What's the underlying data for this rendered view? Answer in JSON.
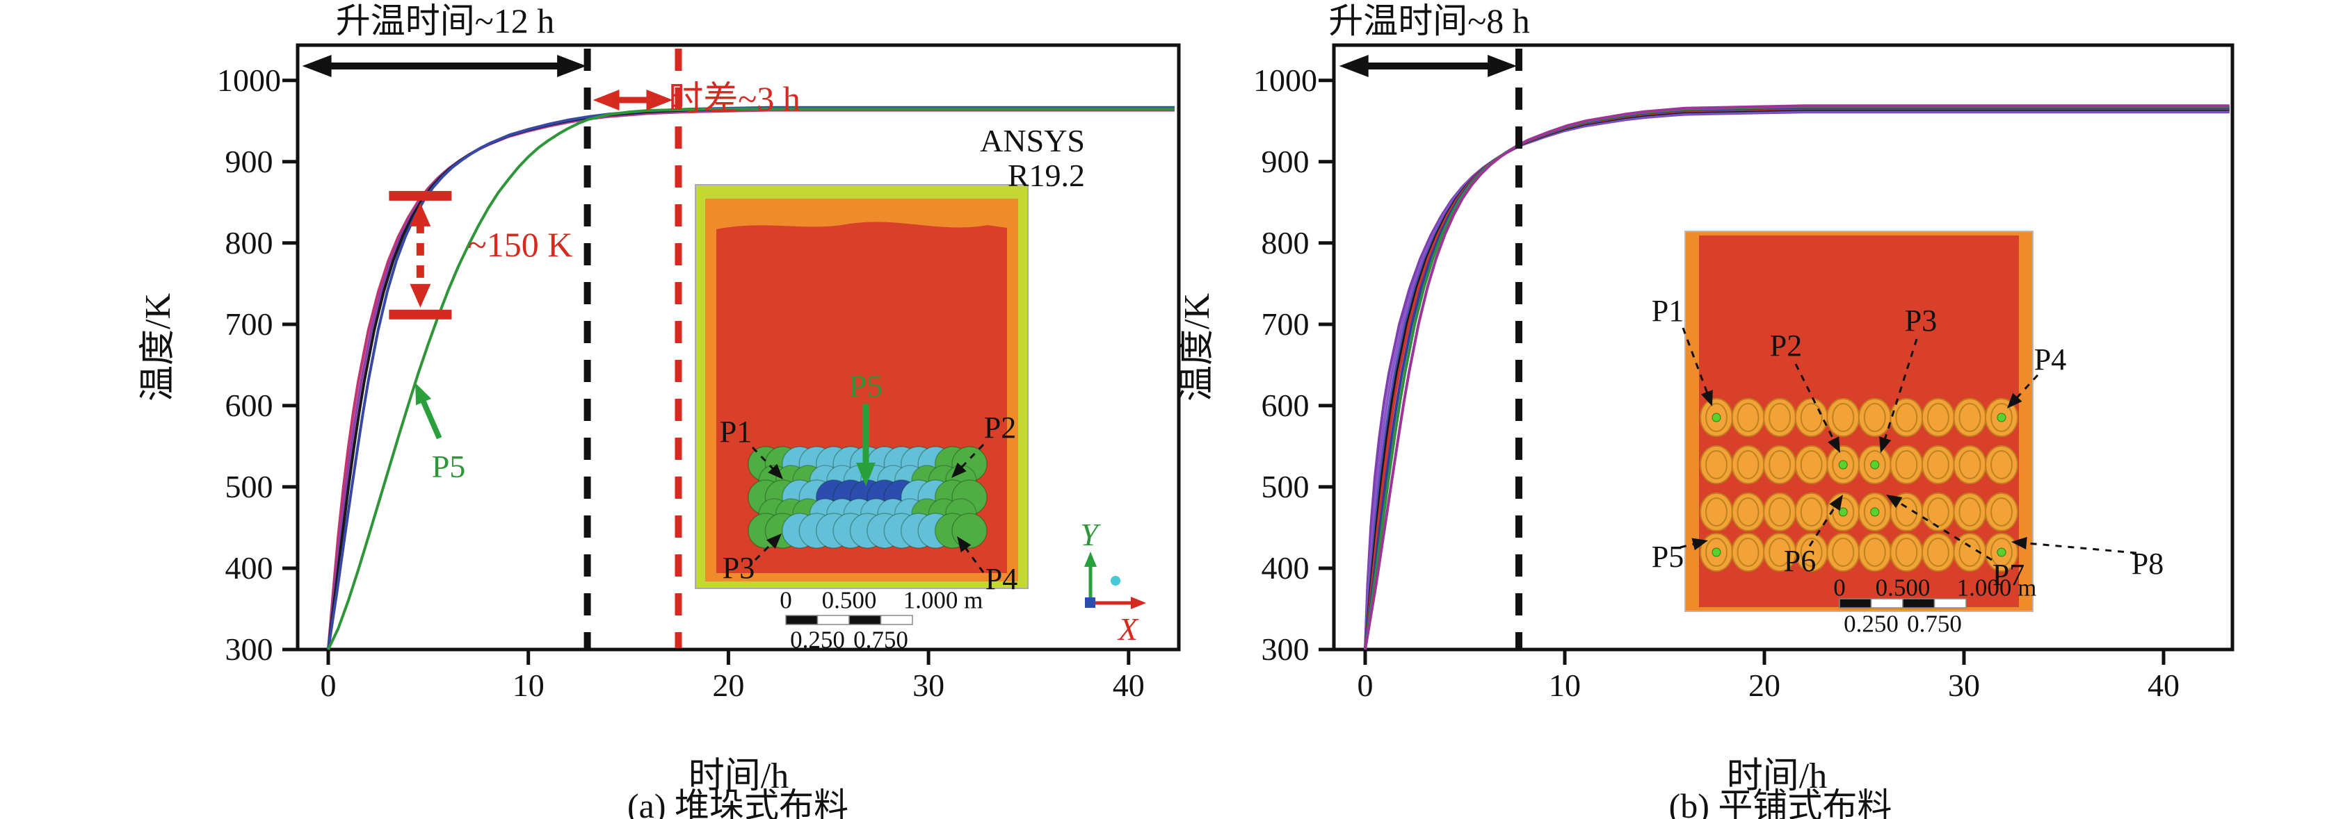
{
  "figure": {
    "caption_a": "(a) 堆垛式布料",
    "caption_b": "(b) 平铺式布料"
  },
  "panel_a": {
    "heatup_label": "升温时间~12 h",
    "timediff_label": "时差~3 h",
    "delta_label": "~150 K",
    "software": [
      "ANSYS",
      "R19.2"
    ],
    "curve_label": "P5",
    "xlabel": "时间/h",
    "ylabel": "温度/K",
    "x_ticks": [
      0,
      10,
      20,
      30,
      40
    ],
    "y_ticks": [
      300,
      400,
      500,
      600,
      700,
      800,
      900,
      1000
    ],
    "inset": {
      "point_labels": [
        "P1",
        "P2",
        "P3",
        "P4"
      ],
      "center_label": "P5",
      "scale_top": [
        "0",
        "0.500",
        "1.000 m"
      ],
      "scale_bottom": [
        "0.250",
        "0.750"
      ],
      "axis_x": "X",
      "axis_y": "Y"
    }
  },
  "panel_b": {
    "heatup_label": "升温时间~8 h",
    "xlabel": "时间/h",
    "ylabel": "温度/K",
    "x_ticks": [
      0,
      10,
      20,
      30,
      40
    ],
    "y_ticks": [
      300,
      400,
      500,
      600,
      700,
      800,
      900,
      1000
    ],
    "inset": {
      "point_labels": [
        "P1",
        "P2",
        "P3",
        "P4",
        "P5",
        "P6",
        "P7",
        "P8"
      ],
      "scale_top": [
        "0",
        "0.500",
        "1.000 m"
      ],
      "scale_bottom": [
        "0.250",
        "0.750"
      ]
    }
  },
  "chart_data": [
    {
      "type": "line",
      "title": "(a) 堆垛式布料",
      "xlabel": "时间/h",
      "ylabel": "温度/K",
      "xlim": [
        -1.5,
        42.5
      ],
      "ylim": [
        300,
        1043
      ],
      "plateau_K": 965,
      "start_K": 300,
      "base_points": [
        [
          0,
          300
        ],
        [
          0.25,
          372
        ],
        [
          0.5,
          440
        ],
        [
          0.75,
          498
        ],
        [
          1,
          548
        ],
        [
          1.25,
          592
        ],
        [
          1.5,
          630
        ],
        [
          2,
          692
        ],
        [
          2.5,
          740
        ],
        [
          3,
          778
        ],
        [
          3.5,
          808
        ],
        [
          4,
          832
        ],
        [
          4.5,
          852
        ],
        [
          5,
          868
        ],
        [
          5.5,
          881
        ],
        [
          6,
          892
        ],
        [
          6.5,
          901
        ],
        [
          7,
          909
        ],
        [
          7.5,
          916
        ],
        [
          8,
          922
        ],
        [
          9,
          932
        ],
        [
          10,
          939
        ],
        [
          11,
          945
        ],
        [
          12,
          950
        ],
        [
          13,
          954
        ],
        [
          14,
          957
        ],
        [
          15,
          959
        ],
        [
          16,
          961
        ],
        [
          18,
          963
        ],
        [
          20,
          964
        ],
        [
          22,
          965
        ],
        [
          25,
          965
        ],
        [
          28,
          965
        ],
        [
          30,
          965
        ],
        [
          32,
          965
        ],
        [
          35,
          965
        ],
        [
          38,
          965
        ],
        [
          40,
          965
        ],
        [
          42.3,
          965
        ]
      ],
      "series": [
        {
          "name": "P1",
          "color": "#c2346e",
          "dt": 0
        },
        {
          "name": "P2",
          "color": "#8a41b0",
          "dt": 0.15
        },
        {
          "name": "P3",
          "color": "#181818",
          "dt": 0.3
        },
        {
          "name": "P4",
          "color": "#3748a6",
          "dt": 0.5
        }
      ],
      "slow_series": {
        "name": "P5",
        "color": "#2e9639",
        "points": [
          [
            0,
            300
          ],
          [
            0.5,
            326
          ],
          [
            1,
            360
          ],
          [
            1.5,
            398
          ],
          [
            2,
            438
          ],
          [
            2.5,
            479
          ],
          [
            3,
            520
          ],
          [
            3.5,
            561
          ],
          [
            4,
            601
          ],
          [
            4.5,
            640
          ],
          [
            5,
            676
          ],
          [
            5.5,
            710
          ],
          [
            6,
            742
          ],
          [
            6.5,
            771
          ],
          [
            7,
            797
          ],
          [
            7.5,
            821
          ],
          [
            8,
            843
          ],
          [
            8.5,
            862
          ],
          [
            9,
            878
          ],
          [
            9.5,
            893
          ],
          [
            10,
            906
          ],
          [
            10.5,
            917
          ],
          [
            11,
            926
          ],
          [
            11.5,
            934
          ],
          [
            12,
            941
          ],
          [
            12.5,
            947
          ],
          [
            13,
            952
          ],
          [
            14,
            958
          ],
          [
            15,
            961
          ],
          [
            16,
            963
          ],
          [
            18,
            964
          ],
          [
            20,
            965
          ],
          [
            25,
            965
          ],
          [
            30,
            965
          ],
          [
            35,
            965
          ],
          [
            40,
            965
          ],
          [
            42.3,
            965
          ]
        ]
      },
      "annotations": {
        "heatup_time_h": 12,
        "heatup_arrow_h": [
          -1.3,
          12.9
        ],
        "vline_black_h": 12.95,
        "vline_red_h": 17.5,
        "time_gap_h": 3,
        "temp_gap_K": 150,
        "delta_arrow": {
          "t_h": 4.6,
          "T_top_K": 858,
          "T_bottom_K": 712
        },
        "p5_pointer": {
          "tip": [
            4.35,
            628
          ],
          "tail": [
            5.55,
            560
          ]
        }
      }
    },
    {
      "type": "line",
      "title": "(b) 平铺式布料",
      "xlabel": "时间/h",
      "ylabel": "温度/K",
      "xlim": [
        -1.5,
        43.4
      ],
      "ylim": [
        300,
        1043
      ],
      "plateau_K": 965,
      "start_K": 300,
      "base_points": [
        [
          0,
          300
        ],
        [
          0.25,
          380
        ],
        [
          0.5,
          452
        ],
        [
          0.75,
          512
        ],
        [
          1,
          562
        ],
        [
          1.25,
          605
        ],
        [
          1.5,
          641
        ],
        [
          2,
          700
        ],
        [
          2.5,
          745
        ],
        [
          3,
          781
        ],
        [
          3.5,
          810
        ],
        [
          4,
          834
        ],
        [
          4.5,
          854
        ],
        [
          5,
          870
        ],
        [
          5.5,
          883
        ],
        [
          6,
          894
        ],
        [
          6.5,
          903
        ],
        [
          7,
          911
        ],
        [
          7.5,
          918
        ],
        [
          8,
          924
        ],
        [
          9,
          933
        ],
        [
          10,
          941
        ],
        [
          11,
          947
        ],
        [
          12,
          951
        ],
        [
          13,
          955
        ],
        [
          14,
          958
        ],
        [
          15,
          960
        ],
        [
          16,
          962
        ],
        [
          18,
          963
        ],
        [
          20,
          964
        ],
        [
          22,
          965
        ],
        [
          25,
          965
        ],
        [
          30,
          965
        ],
        [
          35,
          965
        ],
        [
          40,
          965
        ],
        [
          43.3,
          965
        ]
      ],
      "series": [
        {
          "name": "P1",
          "color": "#7d3fb2",
          "dt": -0.3
        },
        {
          "name": "P2",
          "color": "#8a55c9",
          "dt": -0.15
        },
        {
          "name": "P3",
          "color": "#4a52b5",
          "dt": 0
        },
        {
          "name": "P4",
          "color": "#181818",
          "dt": 0.1
        },
        {
          "name": "P5",
          "color": "#cc3430",
          "dt": 0.2
        },
        {
          "name": "P6",
          "color": "#2f3f9e",
          "dt": 0.35
        },
        {
          "name": "P7",
          "color": "#2d8f3c",
          "dt": 0.5
        },
        {
          "name": "P8",
          "color": "#a03398",
          "dt": 0.7
        }
      ],
      "annotations": {
        "heatup_time_h": 8,
        "heatup_arrow_h": [
          -1.3,
          7.6
        ],
        "vline_black_h": 7.7
      }
    }
  ]
}
